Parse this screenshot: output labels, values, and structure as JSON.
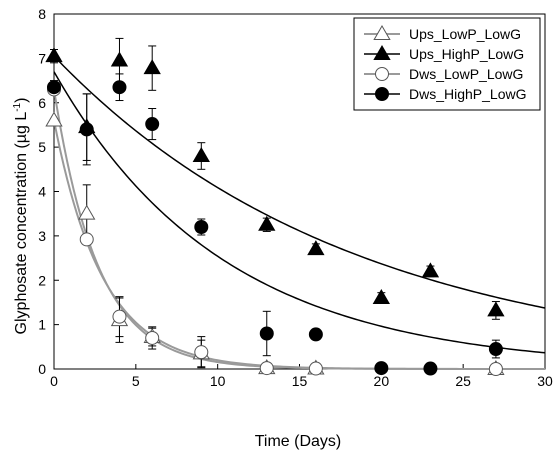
{
  "chart_data": {
    "type": "scatter",
    "xlabel": "Time (Days)",
    "ylabel": "Glyphosate concentration (µg L",
    "ylabel_sup": "-1",
    "ylabel_end": ")",
    "xlim": [
      0,
      30
    ],
    "ylim": [
      0,
      8
    ],
    "xticks": [
      0,
      5,
      10,
      15,
      20,
      25,
      30
    ],
    "yticks": [
      0,
      1,
      2,
      3,
      4,
      5,
      6,
      7,
      8
    ],
    "grid": false,
    "legend_position": "top-right",
    "series": [
      {
        "name": "Ups_LowP_LowG",
        "marker": "triangle",
        "filled": false,
        "points": [
          {
            "x": 0,
            "y": 5.6,
            "err": 0.0
          },
          {
            "x": 2,
            "y": 3.5,
            "err": 0.65
          },
          {
            "x": 4,
            "y": 1.1,
            "err": 0.5
          },
          {
            "x": 6,
            "y": 0.72,
            "err": 0.2
          },
          {
            "x": 9,
            "y": 0.35,
            "err": 0.3
          },
          {
            "x": 13,
            "y": 0.02,
            "err": 0.0
          },
          {
            "x": 16,
            "y": 0.01,
            "err": 0.0
          },
          {
            "x": 27,
            "y": 0.0,
            "err": 0.0
          }
        ],
        "fit": {
          "c0": 5.6,
          "k": 0.335
        }
      },
      {
        "name": "Ups_HighP_LowG",
        "marker": "triangle",
        "filled": true,
        "points": [
          {
            "x": 0,
            "y": 7.05,
            "err": 0.15
          },
          {
            "x": 2,
            "y": 5.45,
            "err": 0.75
          },
          {
            "x": 4,
            "y": 6.95,
            "err": 0.5
          },
          {
            "x": 6,
            "y": 6.78,
            "err": 0.5
          },
          {
            "x": 9,
            "y": 4.8,
            "err": 0.3
          },
          {
            "x": 13,
            "y": 3.25,
            "err": 0.15
          },
          {
            "x": 16,
            "y": 2.7,
            "err": 0.12
          },
          {
            "x": 20,
            "y": 1.6,
            "err": 0.12
          },
          {
            "x": 23,
            "y": 2.2,
            "err": 0.12
          },
          {
            "x": 27,
            "y": 1.32,
            "err": 0.2
          }
        ],
        "fit": {
          "c0": 7.05,
          "k": 0.0545
        }
      },
      {
        "name": "Dws_LowP_LowG",
        "marker": "circle",
        "filled": false,
        "points": [
          {
            "x": 0,
            "y": 6.3,
            "err": 0.0
          },
          {
            "x": 2,
            "y": 2.92,
            "err": 0.1
          },
          {
            "x": 4,
            "y": 1.18,
            "err": 0.45
          },
          {
            "x": 6,
            "y": 0.7,
            "err": 0.25
          },
          {
            "x": 9,
            "y": 0.38,
            "err": 0.35
          },
          {
            "x": 13,
            "y": 0.02,
            "err": 0.0
          },
          {
            "x": 16,
            "y": 0.01,
            "err": 0.0
          },
          {
            "x": 27,
            "y": 0.0,
            "err": 0.0
          }
        ],
        "fit": {
          "c0": 6.3,
          "k": 0.37
        }
      },
      {
        "name": "Dws_HighP_LowG",
        "marker": "circle",
        "filled": true,
        "points": [
          {
            "x": 0,
            "y": 6.35,
            "err": 0.15
          },
          {
            "x": 2,
            "y": 5.4,
            "err": 0.8
          },
          {
            "x": 4,
            "y": 6.35,
            "err": 0.3
          },
          {
            "x": 6,
            "y": 5.52,
            "err": 0.35
          },
          {
            "x": 9,
            "y": 3.2,
            "err": 0.18
          },
          {
            "x": 13,
            "y": 0.8,
            "err": 0.5
          },
          {
            "x": 16,
            "y": 0.78,
            "err": 0.08
          },
          {
            "x": 20,
            "y": 0.02,
            "err": 0.0
          },
          {
            "x": 23,
            "y": 0.01,
            "err": 0.0
          },
          {
            "x": 27,
            "y": 0.45,
            "err": 0.2
          }
        ],
        "fit": {
          "c0": 6.7,
          "k": 0.097
        }
      }
    ]
  }
}
